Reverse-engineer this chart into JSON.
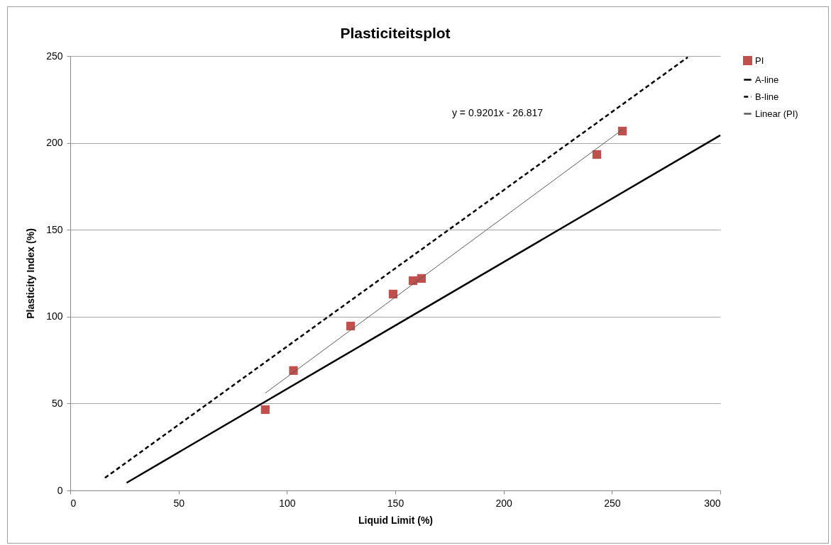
{
  "chart_data": {
    "type": "scatter",
    "title": "Plasticiteitsplot",
    "xlabel": "Liquid Limit (%)",
    "ylabel": "Plasticity Index (%)",
    "xlim": [
      0,
      300
    ],
    "xticks": [
      0,
      50,
      100,
      150,
      200,
      250,
      300
    ],
    "ylim": [
      0,
      250
    ],
    "yticks": [
      0,
      50,
      100,
      150,
      200,
      250
    ],
    "grid": "y",
    "legend": "right",
    "annotations": [
      "y = 0.9201x - 26.817"
    ],
    "series": [
      {
        "name": "PI",
        "type": "scatter",
        "marker": "square",
        "color": "#c0504d",
        "x": [
          90,
          103,
          129.4,
          149,
          158.2,
          162.1,
          243,
          254.8
        ],
        "values": [
          46.5,
          69,
          94.6,
          113,
          120.7,
          122,
          193.3,
          206.8
        ]
      },
      {
        "name": "A-line",
        "type": "line",
        "line_style": "solid",
        "color": "#000000",
        "x": [
          26,
          300
        ],
        "values": [
          4.4,
          204.4
        ]
      },
      {
        "name": "B-line",
        "type": "line",
        "line_style": "dashed",
        "color": "#000000",
        "x": [
          16,
          285
        ],
        "values": [
          7.2,
          249.3
        ]
      },
      {
        "name": "Linear (PI)",
        "type": "line",
        "line_style": "solid",
        "color": "#595959",
        "x": [
          90,
          255
        ],
        "values": [
          56,
          207.8
        ]
      }
    ]
  }
}
